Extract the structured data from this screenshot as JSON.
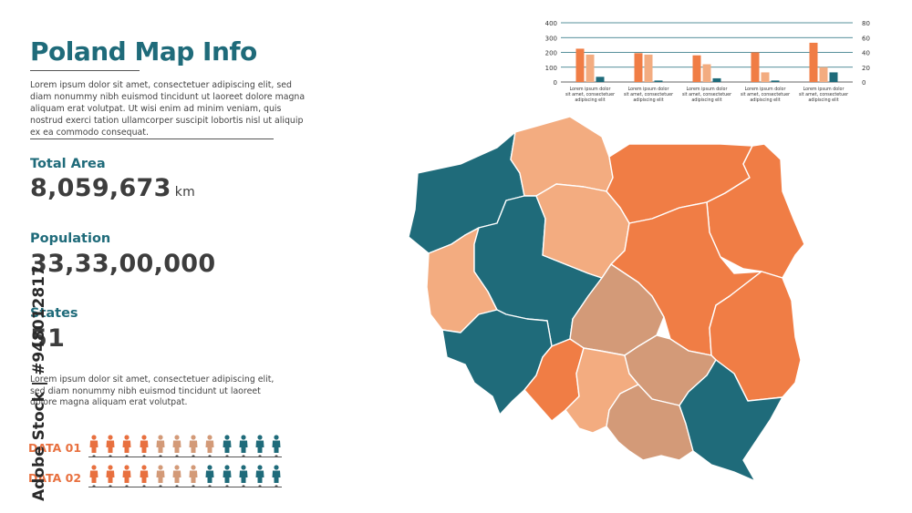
{
  "title": "Poland Map Info",
  "intro_text": "Lorem ipsum dolor sit amet, consectetuer adipiscing elit, sed diam nonummy nibh euismod tincidunt ut laoreet dolore magna aliquam erat volutpat. Ut wisi enim ad minim veniam, quis nostrud exerci tation ullamcorper suscipit lobortis nisl ut aliquip ex ea commodo consequat.",
  "stats": {
    "total_area": {
      "label": "Total Area",
      "value": "8,059,673",
      "unit": "km"
    },
    "population": {
      "label": "Population",
      "value": "33,33,00,000"
    },
    "states": {
      "label": "States",
      "value": "51"
    }
  },
  "note_text": "Lorem ipsum dolor sit amet, consectetuer adipiscing elit, sed diam nonummy nibh euismod tincidunt ut laoreet dolore magna aliquam erat volutpat.",
  "people_rows": [
    {
      "label": "DATA 01",
      "colors": [
        "#e8703f",
        "#e8703f",
        "#e8703f",
        "#e8703f",
        "#d39a78",
        "#d39a78",
        "#d39a78",
        "#d39a78",
        "#1f6b7a",
        "#1f6b7a",
        "#1f6b7a",
        "#1f6b7a"
      ]
    },
    {
      "label": "DATA 02",
      "colors": [
        "#e8703f",
        "#e8703f",
        "#e8703f",
        "#e8703f",
        "#d39a78",
        "#d39a78",
        "#d39a78",
        "#1f6b7a",
        "#1f6b7a",
        "#1f6b7a",
        "#1f6b7a",
        "#1f6b7a"
      ]
    }
  ],
  "watermark": "Adobe Stock | #948012817",
  "colors": {
    "teal": "#1f6b7a",
    "orange": "#f07d45",
    "peach": "#f3ac80",
    "tan": "#d39a78"
  },
  "chart_data": {
    "type": "bar",
    "categories": [
      "Lorem ipsum dolor sit amet, consectetuer adipiscing elit",
      "Lorem ipsum dolor sit amet, consectetuer adipiscing elit",
      "Lorem ipsum dolor sit amet, consectetuer adipiscing elit",
      "Lorem ipsum dolor sit amet, consectetuer adipiscing elit",
      "Lorem ipsum dolor sit amet, consectetuer adipiscing elit"
    ],
    "category_lines": [
      "Lorem ipsum dolor",
      "sit amet, consectetuer",
      "adipiscing elit"
    ],
    "series": [
      {
        "values": [
          225,
          195,
          180,
          200,
          265
        ],
        "color": "#f07d45",
        "axis": "left"
      },
      {
        "values": [
          185,
          185,
          120,
          65,
          100
        ],
        "color": "#f3ac80",
        "axis": "left"
      },
      {
        "values": [
          7,
          2,
          5,
          2,
          13
        ],
        "color": "#1f6b7a",
        "axis": "right"
      }
    ],
    "ylim_left": [
      0,
      400
    ],
    "yticks_left": [
      0,
      100,
      200,
      300,
      400
    ],
    "ylim_right": [
      0,
      80
    ],
    "yticks_right": [
      0,
      20,
      40,
      60,
      80
    ],
    "grid": true
  },
  "map": {
    "regions": [
      {
        "id": "zachodniopomorskie",
        "color": "teal"
      },
      {
        "id": "pomorskie",
        "color": "peach"
      },
      {
        "id": "warminsko-mazurskie",
        "color": "orange"
      },
      {
        "id": "podlaskie",
        "color": "orange"
      },
      {
        "id": "lubuskie",
        "color": "peach"
      },
      {
        "id": "wielkopolskie",
        "color": "teal"
      },
      {
        "id": "kujawsko-pomorskie",
        "color": "peach"
      },
      {
        "id": "mazowieckie",
        "color": "orange"
      },
      {
        "id": "lodzkie",
        "color": "tan"
      },
      {
        "id": "lubelskie",
        "color": "orange"
      },
      {
        "id": "dolnoslaskie",
        "color": "teal"
      },
      {
        "id": "opolskie",
        "color": "orange"
      },
      {
        "id": "slaskie",
        "color": "peach"
      },
      {
        "id": "swietokrzyskie",
        "color": "tan"
      },
      {
        "id": "malopolskie",
        "color": "tan"
      },
      {
        "id": "podkarpackie",
        "color": "teal"
      }
    ]
  }
}
